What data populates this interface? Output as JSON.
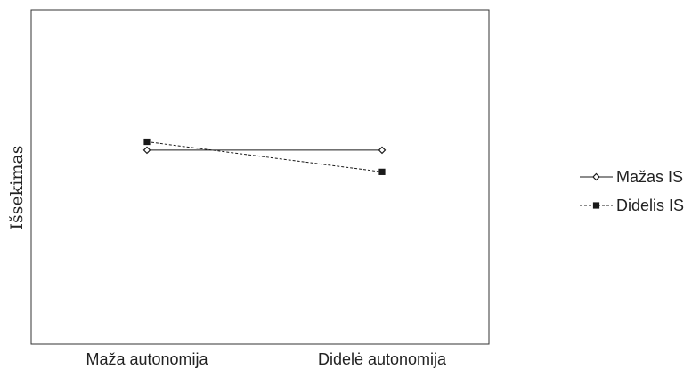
{
  "chart_data": {
    "type": "line",
    "title": "",
    "xlabel": "",
    "ylabel": "Išsekimas",
    "categories": [
      "Maža autonomija",
      "Didelė autonomija"
    ],
    "series": [
      {
        "name": "Mažas IS",
        "values": [
          0.58,
          0.58
        ],
        "line_style": "solid",
        "marker": "diamond-open",
        "color": "#1a1a1a"
      },
      {
        "name": "Didelis IS",
        "values": [
          0.605,
          0.515
        ],
        "line_style": "dashed",
        "marker": "square-filled",
        "color": "#1a1a1a"
      }
    ],
    "ylim": [
      0,
      1
    ],
    "grid": false,
    "legend_position": "right"
  }
}
